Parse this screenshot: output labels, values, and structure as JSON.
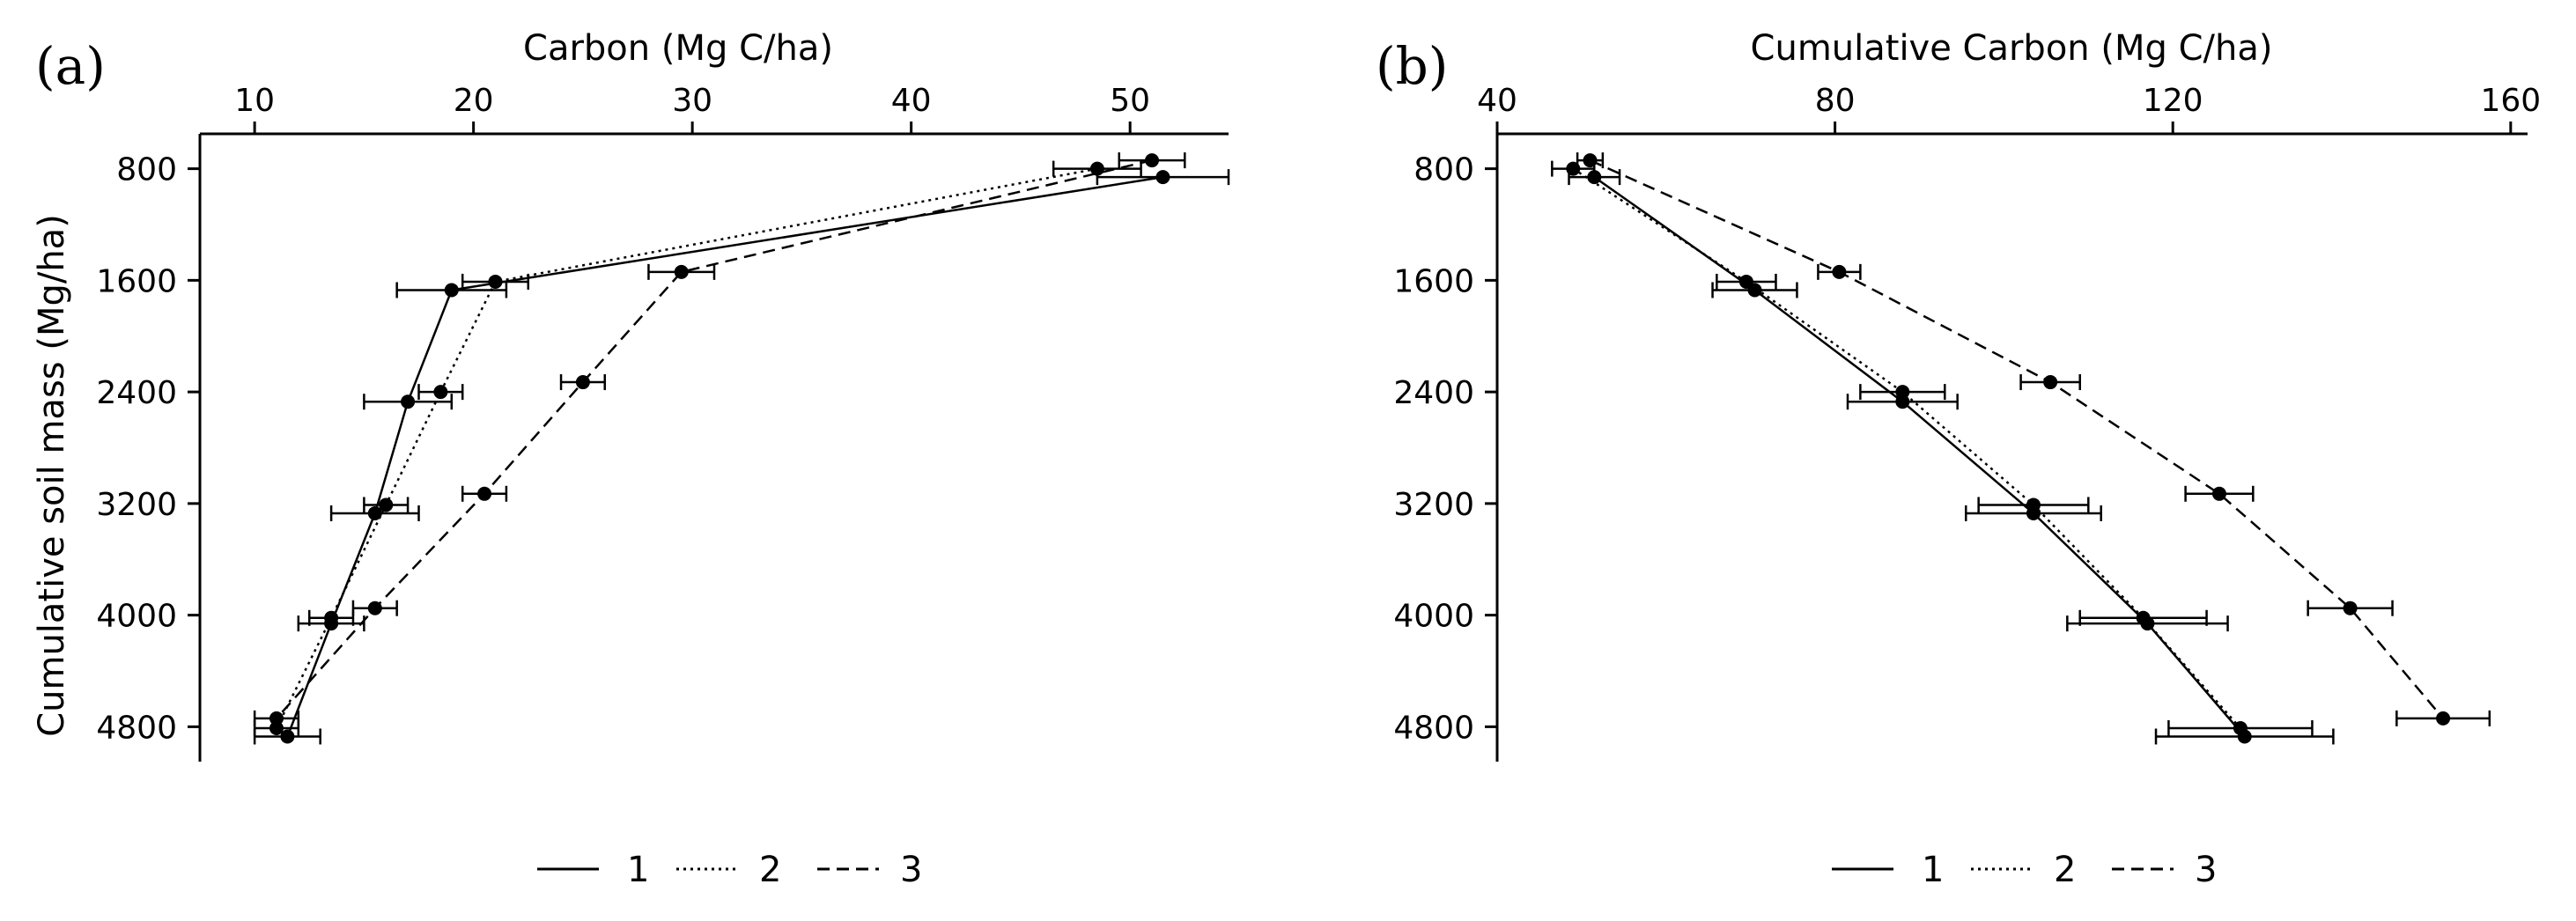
{
  "chart_data": [
    {
      "panel": "(a)",
      "type": "line",
      "xlabel": "Carbon (Mg C/ha)",
      "ylabel": "Cumulative soil mass (Mg/ha)",
      "xlim": [
        7.5,
        54.5
      ],
      "ylim": [
        5050,
        550
      ],
      "xticks": [
        10,
        20,
        30,
        40,
        50
      ],
      "yticks": [
        800,
        1600,
        2400,
        3200,
        4000,
        4800
      ],
      "y_reversed": true,
      "x_axis_position": "top",
      "series": [
        {
          "name": "1",
          "line_style": "solid",
          "x": [
            51.5,
            19.0,
            17.0,
            15.5,
            13.5,
            11.5
          ],
          "y": [
            860,
            1670,
            2470,
            3270,
            4060,
            4870
          ],
          "xerr": [
            3.0,
            2.5,
            2.0,
            2.0,
            1.5,
            1.5
          ]
        },
        {
          "name": "2",
          "line_style": "dotted",
          "x": [
            48.5,
            21.0,
            18.5,
            16.0,
            13.5,
            11.0
          ],
          "y": [
            800,
            1610,
            2400,
            3210,
            4020,
            4810
          ],
          "xerr": [
            2.0,
            1.5,
            1.0,
            1.0,
            1.0,
            1.0
          ]
        },
        {
          "name": "3",
          "line_style": "dashed",
          "x": [
            51.0,
            29.5,
            25.0,
            20.5,
            15.5,
            11.0
          ],
          "y": [
            740,
            1540,
            2330,
            3130,
            3950,
            4740
          ],
          "xerr": [
            1.5,
            1.5,
            1.0,
            1.0,
            1.0,
            1.0
          ]
        }
      ],
      "legend": {
        "position": "bottom",
        "entries": [
          "1",
          "2",
          "3"
        ]
      }
    },
    {
      "panel": "(b)",
      "type": "line",
      "xlabel": "Cumulative Carbon (Mg C/ha)",
      "ylabel": "",
      "xlim": [
        40,
        162
      ],
      "ylim": [
        5050,
        550
      ],
      "xticks": [
        40,
        80,
        120,
        160
      ],
      "yticks": [
        800,
        1600,
        2400,
        3200,
        4000,
        4800
      ],
      "y_reversed": true,
      "x_axis_position": "top",
      "series": [
        {
          "name": "1",
          "line_style": "solid",
          "x": [
            51.5,
            70.5,
            88.0,
            103.5,
            117.0,
            128.5
          ],
          "y": [
            860,
            1670,
            2470,
            3270,
            4060,
            4870
          ],
          "xerr": [
            3.0,
            5.0,
            6.5,
            8.0,
            9.5,
            10.5
          ]
        },
        {
          "name": "2",
          "line_style": "dotted",
          "x": [
            49.0,
            69.5,
            88.0,
            103.5,
            116.5,
            128.0
          ],
          "y": [
            800,
            1610,
            2400,
            3210,
            4020,
            4810
          ],
          "xerr": [
            2.5,
            3.5,
            5.0,
            6.5,
            7.5,
            8.5
          ]
        },
        {
          "name": "3",
          "line_style": "dashed",
          "x": [
            51.0,
            80.5,
            105.5,
            125.5,
            141.0,
            152.0
          ],
          "y": [
            740,
            1540,
            2330,
            3130,
            3950,
            4740
          ],
          "xerr": [
            1.5,
            2.5,
            3.5,
            4.0,
            5.0,
            5.5
          ]
        }
      ],
      "legend": {
        "position": "bottom",
        "entries": [
          "1",
          "2",
          "3"
        ]
      }
    }
  ]
}
